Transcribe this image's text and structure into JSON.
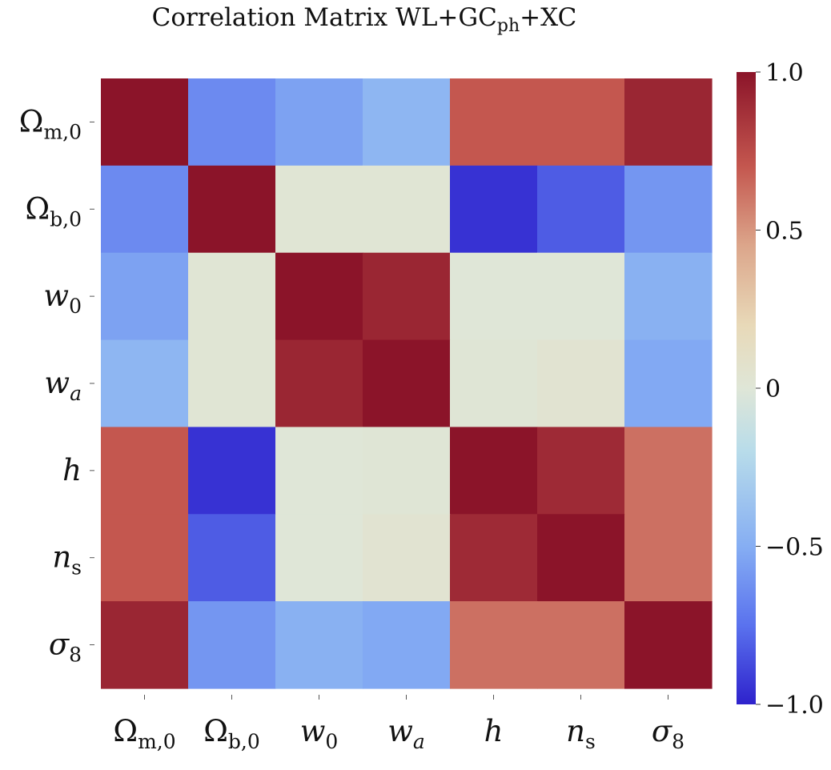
{
  "chart_data": {
    "type": "heatmap",
    "title": "Correlation Matrix WL+GCph+XC",
    "title_parts": {
      "main": "Correlation Matrix WL+GC",
      "sub": "ph",
      "tail": "+XC"
    },
    "labels": [
      {
        "base": "Ω",
        "sub": "m,0"
      },
      {
        "base": "Ω",
        "sub": "b,0"
      },
      {
        "base": "w",
        "sub": "0"
      },
      {
        "base": "w",
        "sub": "a"
      },
      {
        "base": "h",
        "sub": ""
      },
      {
        "base": "n",
        "sub": "s"
      },
      {
        "base": "σ",
        "sub": "8"
      }
    ],
    "matrix": [
      [
        1.0,
        -0.65,
        -0.55,
        -0.45,
        0.7,
        0.7,
        0.92
      ],
      [
        -0.65,
        1.0,
        0.02,
        0.02,
        -0.95,
        -0.82,
        -0.6
      ],
      [
        -0.55,
        0.02,
        1.0,
        0.92,
        0.0,
        0.0,
        -0.48
      ],
      [
        -0.45,
        0.02,
        0.92,
        1.0,
        0.01,
        0.04,
        -0.52
      ],
      [
        0.7,
        -0.95,
        0.0,
        0.01,
        1.0,
        0.9,
        0.62
      ],
      [
        0.7,
        -0.82,
        0.0,
        0.04,
        0.9,
        1.0,
        0.62
      ],
      [
        0.92,
        -0.6,
        -0.48,
        -0.52,
        0.62,
        0.62,
        1.0
      ]
    ],
    "colorbar": {
      "vmin": -1.0,
      "vmax": 1.0,
      "ticks": [
        1.0,
        0.5,
        0,
        -0.5,
        -1.0
      ],
      "tick_labels": [
        "1.0",
        "0.5",
        "0",
        "−0.5",
        "−1.0"
      ],
      "colormap": "coolwarm",
      "stops": [
        {
          "v": -1.0,
          "c": "#2e22cc"
        },
        {
          "v": -0.75,
          "c": "#5a72ee"
        },
        {
          "v": -0.5,
          "c": "#86aef3"
        },
        {
          "v": -0.2,
          "c": "#b8dcea"
        },
        {
          "v": 0.0,
          "c": "#dfe6d7"
        },
        {
          "v": 0.2,
          "c": "#e8d9b8"
        },
        {
          "v": 0.45,
          "c": "#dca68b"
        },
        {
          "v": 0.7,
          "c": "#c4574f"
        },
        {
          "v": 1.0,
          "c": "#8b1429"
        }
      ]
    }
  }
}
